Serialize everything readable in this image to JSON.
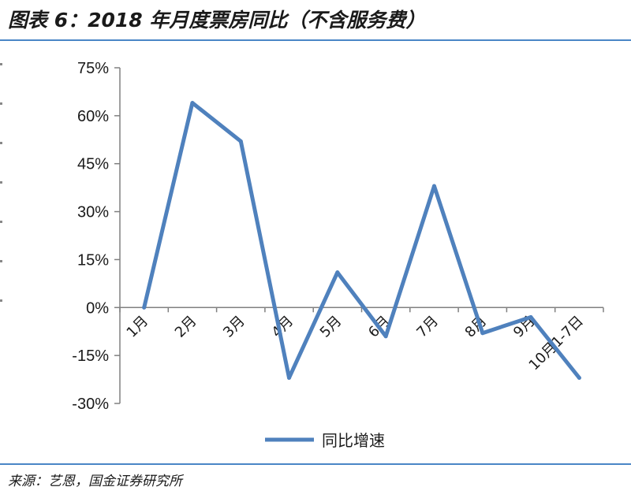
{
  "header": {
    "title": "图表 6：2018 年月度票房同比（不含服务费）"
  },
  "footer": {
    "source": "来源：艺恩，国金证券研究所"
  },
  "colors": {
    "line": "#4f81bd",
    "rule": "#4a86c6",
    "axis": "#808080"
  },
  "chart_data": {
    "type": "line",
    "title": "",
    "xlabel": "",
    "ylabel": "",
    "categories": [
      "1月",
      "2月",
      "3月",
      "4月",
      "5月",
      "6月",
      "7月",
      "8月",
      "9月",
      "10月1-7日"
    ],
    "series": [
      {
        "name": "同比增速",
        "values": [
          0,
          64,
          52,
          -22,
          11,
          -9,
          38,
          -8,
          -3,
          -22
        ]
      }
    ],
    "ylim": [
      -30,
      75
    ],
    "yticks": [
      75,
      60,
      45,
      30,
      15,
      0,
      -15,
      -30
    ],
    "ytick_labels": [
      "75%",
      "60%",
      "45%",
      "30%",
      "15%",
      "0%",
      "-15%",
      "-30%"
    ],
    "grid": false,
    "legend_position": "bottom"
  }
}
